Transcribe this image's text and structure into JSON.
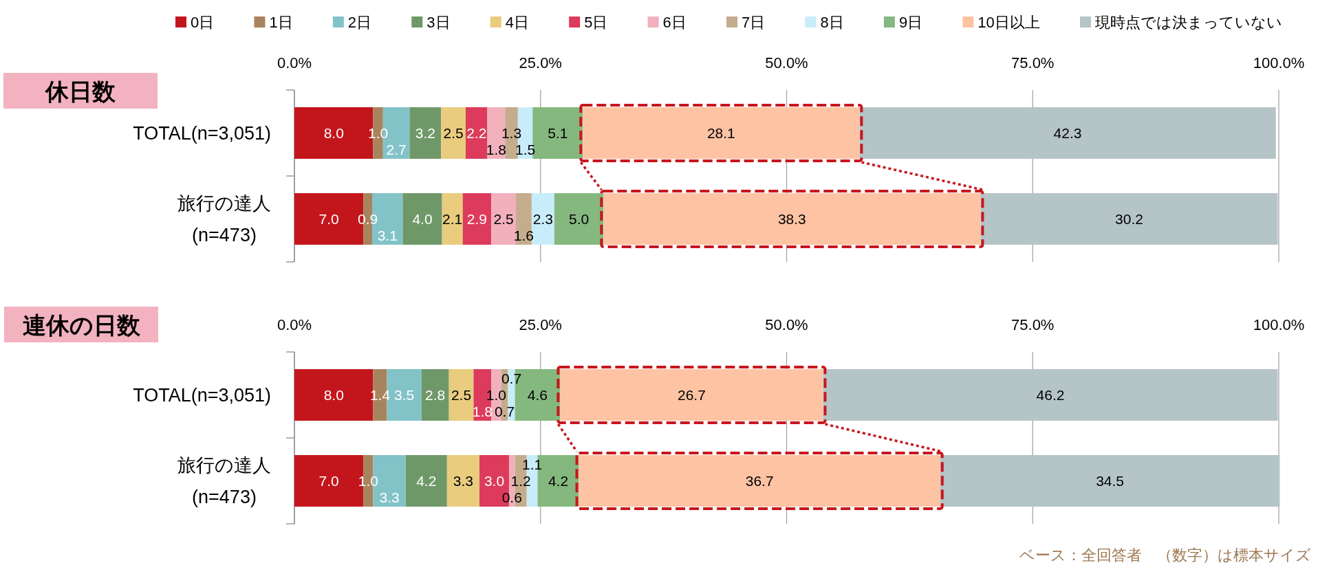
{
  "chart_data": [
    {
      "type": "bar",
      "orientation": "horizontal",
      "stacked": true,
      "title": "休日数",
      "categories": [
        "TOTAL(n=3,051)",
        "旅行の達人\n(n=473)"
      ],
      "xlim": [
        0,
        100
      ],
      "xticks": [
        {
          "value": 0,
          "label": "0.0%"
        },
        {
          "value": 25,
          "label": "25.0%"
        },
        {
          "value": 50,
          "label": "50.0%"
        },
        {
          "value": 75,
          "label": "75.0%"
        },
        {
          "value": 100,
          "label": "100.0%"
        }
      ],
      "grid": "x",
      "legend": "top",
      "series": [
        {
          "name": "0日",
          "color": "#c3161c",
          "values": [
            8.0,
            7.0
          ],
          "value_labels": [
            "8.0",
            "7.0"
          ]
        },
        {
          "name": "1日",
          "color": "#a8845e",
          "values": [
            1.0,
            0.9
          ],
          "value_labels": [
            "1.0",
            "0.9"
          ]
        },
        {
          "name": "2日",
          "color": "#82c3c8",
          "values": [
            2.7,
            3.1
          ],
          "value_labels": [
            "2.7",
            "3.1"
          ]
        },
        {
          "name": "3日",
          "color": "#6f9869",
          "values": [
            3.2,
            4.0
          ],
          "value_labels": [
            "3.2",
            "4.0"
          ]
        },
        {
          "name": "4日",
          "color": "#e9cc7e",
          "values": [
            2.5,
            2.1
          ],
          "value_labels": [
            "2.5",
            "2.1"
          ]
        },
        {
          "name": "5日",
          "color": "#dc3b5b",
          "values": [
            2.2,
            2.9
          ],
          "value_labels": [
            "2.2",
            "2.9"
          ]
        },
        {
          "name": "6日",
          "color": "#f2b0bd",
          "values": [
            1.8,
            2.5
          ],
          "value_labels": [
            "1.8",
            "2.5"
          ]
        },
        {
          "name": "7日",
          "color": "#c4ac8c",
          "values": [
            1.3,
            1.6
          ],
          "value_labels": [
            "1.3",
            "1.6"
          ]
        },
        {
          "name": "8日",
          "color": "#c9ecfb",
          "values": [
            1.5,
            2.3
          ],
          "value_labels": [
            "1.5",
            "2.3"
          ]
        },
        {
          "name": "9日",
          "color": "#84b87f",
          "values": [
            5.1,
            5.0
          ],
          "value_labels": [
            "5.1",
            "5.0"
          ]
        },
        {
          "name": "10日以上",
          "color": "#fdc3a3",
          "values": [
            28.1,
            38.3
          ],
          "value_labels": [
            "28.1",
            "38.3"
          ]
        },
        {
          "name": "現時点では決まっていない",
          "color": "#b5c4c7",
          "values": [
            42.3,
            30.2
          ],
          "value_labels": [
            "42.3",
            "30.2"
          ]
        }
      ]
    },
    {
      "type": "bar",
      "orientation": "horizontal",
      "stacked": true,
      "title": "連休の日数",
      "categories": [
        "TOTAL(n=3,051)",
        "旅行の達人\n(n=473)"
      ],
      "xlim": [
        0,
        100
      ],
      "xticks": [
        {
          "value": 0,
          "label": "0.0%"
        },
        {
          "value": 25,
          "label": "25.0%"
        },
        {
          "value": 50,
          "label": "50.0%"
        },
        {
          "value": 75,
          "label": "75.0%"
        },
        {
          "value": 100,
          "label": "100.0%"
        }
      ],
      "grid": "x",
      "annotations": [
        "ベース：全回答者　（数字）は標本サイズ"
      ],
      "series": [
        {
          "color": "#c3161c",
          "values": [
            8.0,
            7.0
          ],
          "value_labels": [
            "8.0",
            "7.0"
          ]
        },
        {
          "color": "#a8845e",
          "values": [
            1.4,
            1.0
          ],
          "value_labels": [
            "1.4",
            "1.0"
          ]
        },
        {
          "color": "#82c3c8",
          "values": [
            3.5,
            3.3
          ],
          "value_labels": [
            "3.5",
            "3.3"
          ]
        },
        {
          "color": "#6f9869",
          "values": [
            2.8,
            4.2
          ],
          "value_labels": [
            "2.8",
            "4.2"
          ]
        },
        {
          "color": "#e9cc7e",
          "values": [
            2.5,
            3.3
          ],
          "value_labels": [
            "2.5",
            "3.3"
          ]
        },
        {
          "color": "#dc3b5b",
          "values": [
            1.8,
            3.0
          ],
          "value_labels": [
            "1.8",
            "3.0"
          ]
        },
        {
          "color": "#f2b0bd",
          "values": [
            1.0,
            0.6
          ],
          "value_labels": [
            "1.0",
            "0.6"
          ]
        },
        {
          "color": "#c4ac8c",
          "values": [
            0.7,
            1.2
          ],
          "value_labels": [
            "0.7",
            "1.2"
          ]
        },
        {
          "color": "#c9ecfb",
          "values": [
            0.7,
            1.1
          ],
          "value_labels": [
            "0.7",
            "1.1"
          ]
        },
        {
          "color": "#84b87f",
          "values": [
            4.6,
            4.2
          ],
          "value_labels": [
            "4.6",
            "4.2"
          ]
        },
        {
          "color": "#fdc3a3",
          "values": [
            26.7,
            36.7
          ],
          "value_labels": [
            "26.7",
            "36.7"
          ]
        },
        {
          "color": "#b5c4c7",
          "values": [
            46.2,
            34.5
          ],
          "value_labels": [
            "46.2",
            "34.5"
          ]
        }
      ]
    }
  ]
}
